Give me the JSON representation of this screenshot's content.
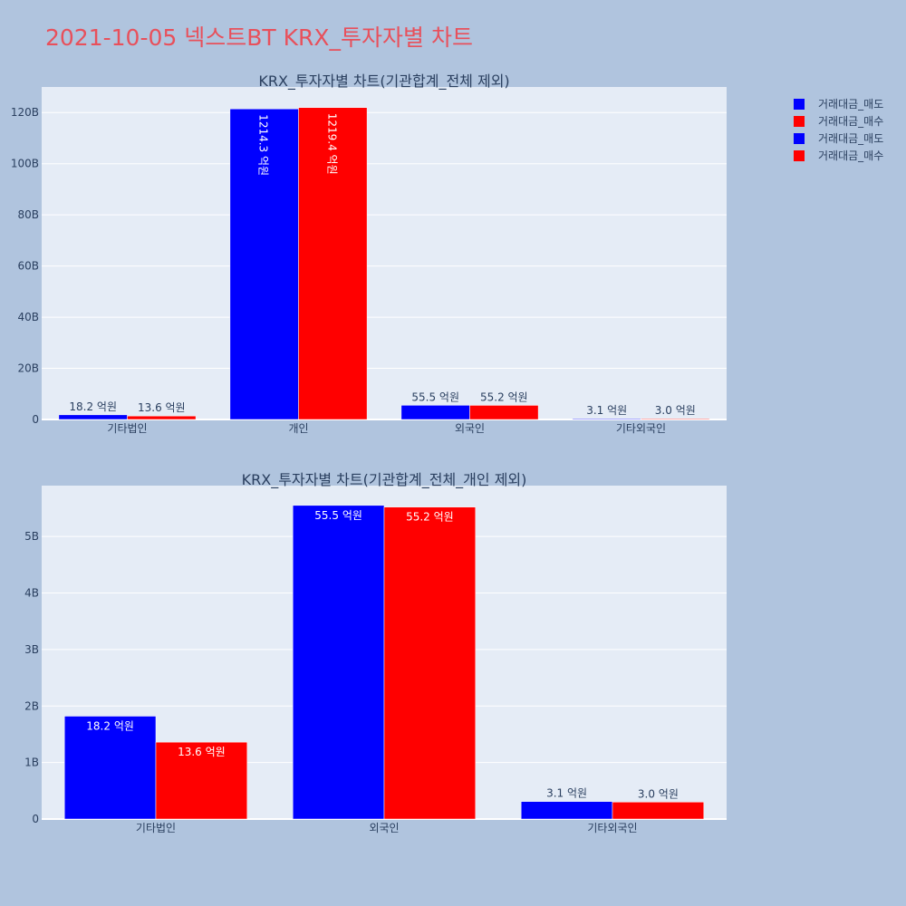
{
  "title": "2021-10-05 넥스트BT KRX_투자자별 차트",
  "legend": [
    {
      "label": "거래대금_매도",
      "color": "#0000ff"
    },
    {
      "label": "거래대금_매수",
      "color": "#ff0000"
    },
    {
      "label": "거래대금_매도",
      "color": "#0000ff"
    },
    {
      "label": "거래대금_매수",
      "color": "#ff0000"
    }
  ],
  "chart_data": [
    {
      "type": "bar",
      "title": "KRX_투자자별 차트(기관합계_전체 제외)",
      "categories": [
        "기타법인",
        "개인",
        "외국인",
        "기타외국인"
      ],
      "ylim": [
        0,
        130
      ],
      "yticks": [
        0,
        20,
        40,
        60,
        80,
        100,
        120
      ],
      "ytick_labels": [
        "0",
        "20B",
        "40B",
        "60B",
        "80B",
        "100B",
        "120B"
      ],
      "grid": true,
      "legend_position": "top-right",
      "series": [
        {
          "name": "거래대금_매도",
          "color": "#0000ff",
          "values": [
            1.82,
            121.43,
            5.55,
            0.31
          ],
          "labels": [
            "18.2 억원",
            "1214.3 억원",
            "55.5 억원",
            "3.1 억원"
          ]
        },
        {
          "name": "거래대금_매수",
          "color": "#ff0000",
          "values": [
            1.36,
            121.94,
            5.52,
            0.3
          ],
          "labels": [
            "13.6 억원",
            "1219.4 억원",
            "55.2 억원",
            "3.0 억원"
          ]
        }
      ]
    },
    {
      "type": "bar",
      "title": "KRX_투자자별 차트(기관합계_전체_개인 제외)",
      "categories": [
        "기타법인",
        "외국인",
        "기타외국인"
      ],
      "ylim": [
        0,
        5.9
      ],
      "yticks": [
        0,
        1,
        2,
        3,
        4,
        5
      ],
      "ytick_labels": [
        "0",
        "1B",
        "2B",
        "3B",
        "4B",
        "5B"
      ],
      "grid": true,
      "series": [
        {
          "name": "거래대금_매도",
          "color": "#0000ff",
          "values": [
            1.82,
            5.55,
            0.31
          ],
          "labels": [
            "18.2 억원",
            "55.5 억원",
            "3.1 억원"
          ]
        },
        {
          "name": "거래대금_매수",
          "color": "#ff0000",
          "values": [
            1.36,
            5.52,
            0.3
          ],
          "labels": [
            "13.6 억원",
            "55.2 억원",
            "3.0 억원"
          ]
        }
      ]
    }
  ]
}
